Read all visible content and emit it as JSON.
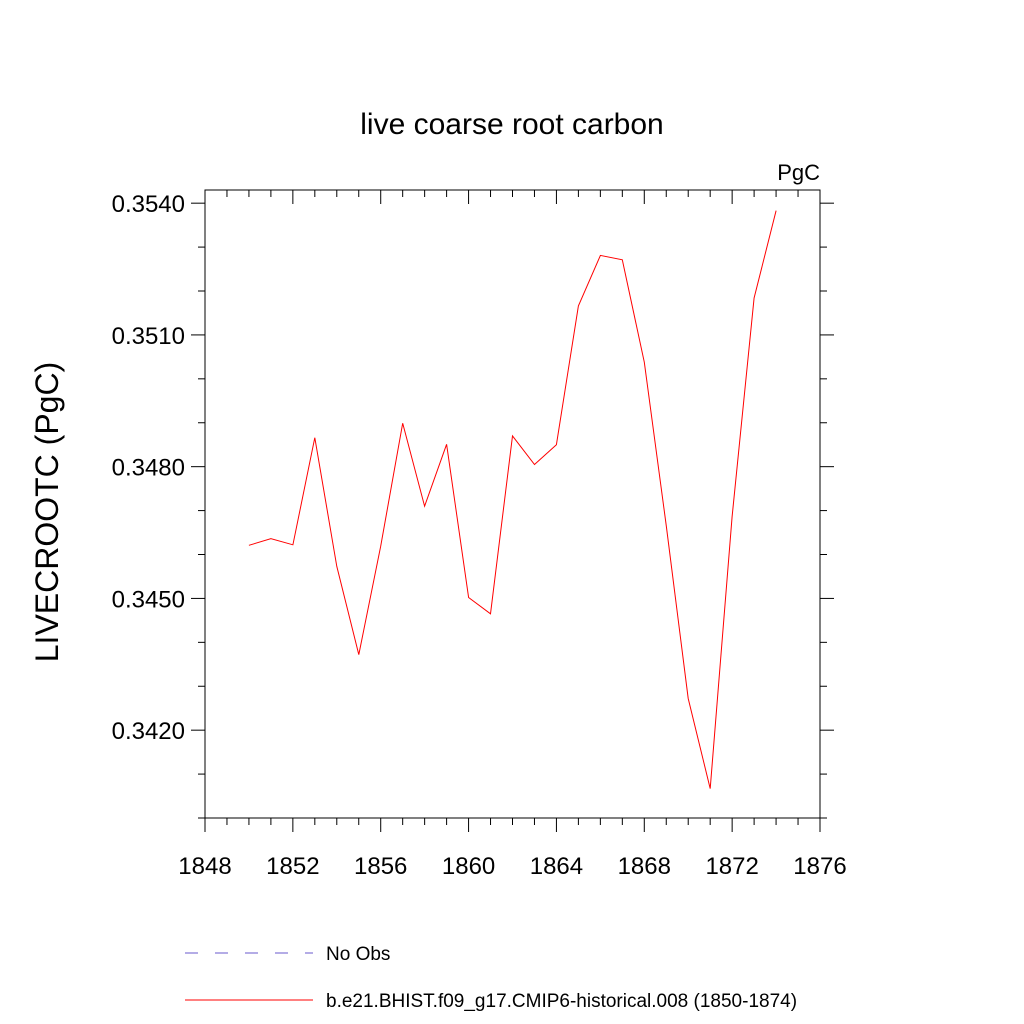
{
  "chart_data": {
    "type": "line",
    "title": "live coarse root carbon",
    "units_label": "PgC",
    "xlabel": "",
    "ylabel": "LIVECROOTC  (PgC)",
    "xlim": [
      1848,
      1876
    ],
    "ylim": [
      0.34,
      0.3543
    ],
    "x_ticks": [
      1848,
      1852,
      1856,
      1860,
      1864,
      1868,
      1872,
      1876
    ],
    "x_tick_labels": [
      "1848",
      "1852",
      "1856",
      "1860",
      "1864",
      "1868",
      "1872",
      "1876"
    ],
    "x_minor_step": 1,
    "y_ticks": [
      0.354,
      0.351,
      0.348,
      0.345,
      0.342
    ],
    "y_tick_labels": [
      "0.3540",
      "0.3510",
      "0.3480",
      "0.3450",
      "0.3420"
    ],
    "y_minor_step": 0.001,
    "series": [
      {
        "name": "b.e21.BHIST.f09_g17.CMIP6-historical.008 (1850-1874)",
        "color": "#ff0000",
        "style": "solid",
        "x": [
          1850,
          1851,
          1852,
          1853,
          1854,
          1855,
          1856,
          1857,
          1858,
          1859,
          1860,
          1861,
          1862,
          1863,
          1864,
          1865,
          1866,
          1867,
          1868,
          1869,
          1870,
          1871,
          1872,
          1873,
          1874
        ],
        "y": [
          0.34621,
          0.34636,
          0.34622,
          0.34866,
          0.34573,
          0.34372,
          0.34619,
          0.34899,
          0.3471,
          0.34851,
          0.34502,
          0.34465,
          0.3487,
          0.34805,
          0.3485,
          0.35166,
          0.35281,
          0.35271,
          0.35038,
          0.34665,
          0.34272,
          0.34067,
          0.34686,
          0.35184,
          0.35383
        ]
      }
    ],
    "legend": [
      {
        "label": "No Obs",
        "color": "#6a5acd",
        "style": "dashed"
      },
      {
        "label": "b.e21.BHIST.f09_g17.CMIP6-historical.008 (1850-1874)",
        "color": "#ff0000",
        "style": "solid"
      }
    ],
    "legend_position": "bottom"
  }
}
